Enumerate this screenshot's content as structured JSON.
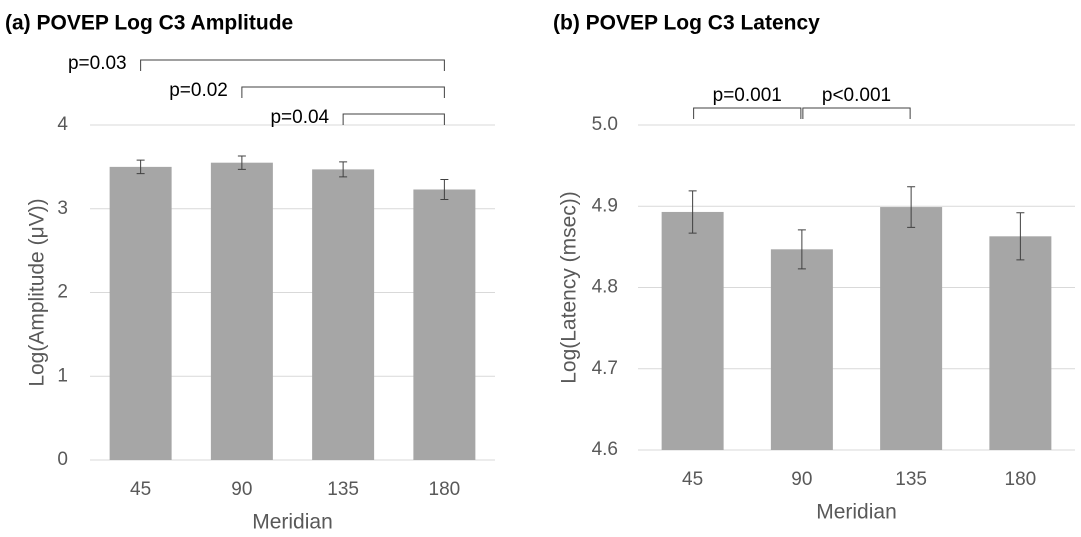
{
  "chart_data": [
    {
      "type": "bar",
      "title": "(a) POVEP Log C3 Amplitude",
      "x_label": "Meridian",
      "y_label": "Log(Amplitude (μV))",
      "categories": [
        "45",
        "90",
        "135",
        "180"
      ],
      "values": [
        3.5,
        3.55,
        3.47,
        3.23
      ],
      "errors": [
        0.08,
        0.08,
        0.09,
        0.12
      ],
      "color": "#a6a6a6",
      "ylim": [
        0,
        4
      ],
      "yticks": [
        0,
        1,
        2,
        3,
        4
      ],
      "grid": true,
      "annotations": [
        {
          "text": "p=0.03",
          "from": "45",
          "to": "180"
        },
        {
          "text": "p=0.02",
          "from": "90",
          "to": "180"
        },
        {
          "text": "p=0.04",
          "from": "135",
          "to": "180"
        }
      ]
    },
    {
      "type": "bar",
      "title": "(b) POVEP Log C3 Latency",
      "x_label": "Meridian",
      "y_label": "Log(Latency (msec))",
      "categories": [
        "45",
        "90",
        "135",
        "180"
      ],
      "values": [
        4.893,
        4.847,
        4.899,
        4.863
      ],
      "errors": [
        0.026,
        0.024,
        0.025,
        0.029
      ],
      "color": "#a6a6a6",
      "ylim": [
        4.6,
        5.0
      ],
      "yticks": [
        4.6,
        4.7,
        4.8,
        4.9,
        {
          "value": 5.0,
          "label": "5.0"
        }
      ],
      "grid": true,
      "annotations": [
        {
          "text": "p=0.001",
          "from": "45",
          "to": "90"
        },
        {
          "text": "p<0.001",
          "from": "90",
          "to": "135"
        }
      ]
    }
  ]
}
